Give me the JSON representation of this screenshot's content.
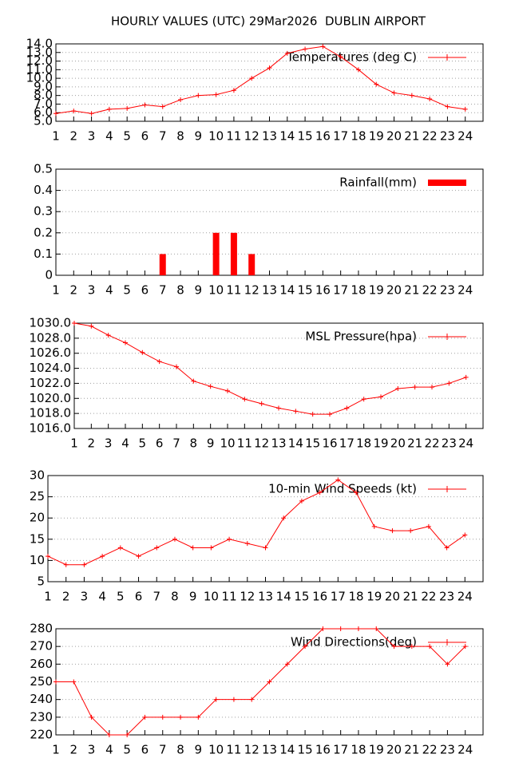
{
  "title": "HOURLY VALUES (UTC) 29Mar2026  DUBLIN AIRPORT",
  "chart_data": [
    {
      "type": "line",
      "x": [
        1,
        2,
        3,
        4,
        5,
        6,
        7,
        8,
        9,
        10,
        11,
        12,
        13,
        14,
        15,
        16,
        17,
        18,
        19,
        20,
        21,
        22,
        23,
        24
      ],
      "series": [
        {
          "name": "Temperatures (deg C)",
          "color": "#ff0000",
          "values": [
            5.9,
            6.2,
            5.9,
            6.4,
            6.5,
            6.9,
            6.7,
            7.5,
            8.0,
            8.1,
            8.6,
            10.0,
            11.2,
            12.9,
            13.4,
            13.7,
            12.5,
            11.0,
            9.3,
            8.3,
            8.0,
            7.6,
            6.7,
            6.4
          ]
        }
      ],
      "xlim": [
        1,
        25
      ],
      "xticks": [
        1,
        2,
        3,
        4,
        5,
        6,
        7,
        8,
        9,
        10,
        11,
        12,
        13,
        14,
        15,
        16,
        17,
        18,
        19,
        20,
        21,
        22,
        23,
        24
      ],
      "ylim": [
        5,
        14
      ],
      "yticks": [
        {
          "value": 5,
          "label": "5.0"
        },
        {
          "value": 6,
          "label": "6.0"
        },
        {
          "value": 7,
          "label": "7.0"
        },
        {
          "value": 8,
          "label": "8.0"
        },
        {
          "value": 9,
          "label": "9.0"
        },
        {
          "value": 10,
          "label": "10.0"
        },
        {
          "value": 11,
          "label": "11.0"
        },
        {
          "value": 12,
          "label": "12.0"
        },
        {
          "value": 13,
          "label": "13.0"
        },
        {
          "value": 14,
          "label": "14.0"
        }
      ],
      "grid": true
    },
    {
      "type": "bar",
      "x": [
        1,
        2,
        3,
        4,
        5,
        6,
        7,
        8,
        9,
        10,
        11,
        12,
        13,
        14,
        15,
        16,
        17,
        18,
        19,
        20,
        21,
        22,
        23,
        24
      ],
      "series": [
        {
          "name": "Rainfall(mm)",
          "color": "#ff0000",
          "values": [
            0,
            0,
            0,
            0,
            0,
            0,
            0.1,
            0,
            0,
            0.2,
            0.2,
            0.1,
            0,
            0,
            0,
            0,
            0,
            0,
            0,
            0,
            0,
            0,
            0,
            0
          ]
        }
      ],
      "xlim": [
        1,
        25
      ],
      "xticks": [
        1,
        2,
        3,
        4,
        5,
        6,
        7,
        8,
        9,
        10,
        11,
        12,
        13,
        14,
        15,
        16,
        17,
        18,
        19,
        20,
        21,
        22,
        23,
        24
      ],
      "ylim": [
        0,
        0.5
      ],
      "yticks": [
        0,
        0.1,
        0.2,
        0.3,
        0.4,
        0.5
      ],
      "grid": true
    },
    {
      "type": "line",
      "x": [
        1,
        2,
        3,
        4,
        5,
        6,
        7,
        8,
        9,
        10,
        11,
        12,
        13,
        14,
        15,
        16,
        17,
        18,
        19,
        20,
        21,
        22,
        23,
        24
      ],
      "series": [
        {
          "name": "MSL Pressure(hpa)",
          "color": "#ff0000",
          "values": [
            1030.0,
            1029.6,
            1028.4,
            1027.4,
            1026.1,
            1024.9,
            1024.2,
            1022.3,
            1021.6,
            1021.0,
            1019.9,
            1019.3,
            1018.7,
            1018.3,
            1017.9,
            1017.9,
            1018.7,
            1019.9,
            1020.2,
            1021.3,
            1021.5,
            1021.5,
            1022.0,
            1022.8
          ]
        }
      ],
      "xlim": [
        1,
        25
      ],
      "xticks": [
        1,
        2,
        3,
        4,
        5,
        6,
        7,
        8,
        9,
        10,
        11,
        12,
        13,
        14,
        15,
        16,
        17,
        18,
        19,
        20,
        21,
        22,
        23,
        24
      ],
      "ylim": [
        1016,
        1030
      ],
      "yticks": [
        {
          "value": 1016,
          "label": "1016.0"
        },
        {
          "value": 1018,
          "label": "1018.0"
        },
        {
          "value": 1020,
          "label": "1020.0"
        },
        {
          "value": 1022,
          "label": "1022.0"
        },
        {
          "value": 1024,
          "label": "1024.0"
        },
        {
          "value": 1026,
          "label": "1026.0"
        },
        {
          "value": 1028,
          "label": "1028.0"
        },
        {
          "value": 1030,
          "label": "1030.0"
        }
      ],
      "grid": true
    },
    {
      "type": "line",
      "x": [
        1,
        2,
        3,
        4,
        5,
        6,
        7,
        8,
        9,
        10,
        11,
        12,
        13,
        14,
        15,
        16,
        17,
        18,
        19,
        20,
        21,
        22,
        23,
        24
      ],
      "series": [
        {
          "name": "10-min Wind Speeds (kt)",
          "color": "#ff0000",
          "values": [
            11,
            9,
            9,
            11,
            13,
            11,
            13,
            15,
            13,
            13,
            15,
            14,
            13,
            20,
            24,
            26,
            29,
            26,
            18,
            17,
            17,
            18,
            13,
            16
          ]
        }
      ],
      "xlim": [
        1,
        25
      ],
      "xticks": [
        1,
        2,
        3,
        4,
        5,
        6,
        7,
        8,
        9,
        10,
        11,
        12,
        13,
        14,
        15,
        16,
        17,
        18,
        19,
        20,
        21,
        22,
        23,
        24
      ],
      "ylim": [
        5,
        30
      ],
      "yticks": [
        5,
        10,
        15,
        20,
        25,
        30
      ],
      "grid": true
    },
    {
      "type": "line",
      "x": [
        1,
        2,
        3,
        4,
        5,
        6,
        7,
        8,
        9,
        10,
        11,
        12,
        13,
        14,
        15,
        16,
        17,
        18,
        19,
        20,
        21,
        22,
        23,
        24
      ],
      "series": [
        {
          "name": "Wind Directions(deg)",
          "color": "#ff0000",
          "values": [
            250,
            250,
            230,
            220,
            220,
            230,
            230,
            230,
            230,
            240,
            240,
            240,
            250,
            260,
            270,
            280,
            280,
            280,
            280,
            270,
            270,
            270,
            260,
            270
          ]
        }
      ],
      "xlim": [
        1,
        25
      ],
      "xticks": [
        1,
        2,
        3,
        4,
        5,
        6,
        7,
        8,
        9,
        10,
        11,
        12,
        13,
        14,
        15,
        16,
        17,
        18,
        19,
        20,
        21,
        22,
        23,
        24
      ],
      "ylim": [
        220,
        280
      ],
      "yticks": [
        220,
        230,
        240,
        250,
        260,
        270,
        280
      ],
      "grid": true
    }
  ]
}
